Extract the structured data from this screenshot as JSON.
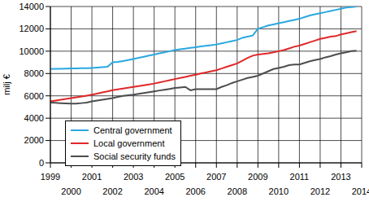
{
  "chart_data": {
    "type": "line",
    "y_label": "milj €",
    "legend": "lower left",
    "grid": true,
    "x": [
      1999,
      1999.25,
      1999.5,
      1999.75,
      2000,
      2000.25,
      2000.5,
      2000.75,
      2001,
      2001.25,
      2001.5,
      2001.75,
      2002,
      2002.25,
      2002.5,
      2002.75,
      2003,
      2003.25,
      2003.5,
      2003.75,
      2004,
      2004.25,
      2004.5,
      2004.75,
      2005,
      2005.25,
      2005.5,
      2005.75,
      2006,
      2006.25,
      2006.5,
      2006.75,
      2007,
      2007.25,
      2007.5,
      2007.75,
      2008,
      2008.25,
      2008.5,
      2008.75,
      2009,
      2009.25,
      2009.5,
      2009.75,
      2010,
      2010.25,
      2010.5,
      2010.75,
      2011,
      2011.25,
      2011.5,
      2011.75,
      2012,
      2012.25,
      2012.5,
      2012.75,
      2013,
      2013.25,
      2013.5,
      2013.75
    ],
    "xlim": [
      1999,
      2014
    ],
    "xticks": [
      1999,
      2000,
      2001,
      2002,
      2003,
      2004,
      2005,
      2006,
      2007,
      2008,
      2009,
      2010,
      2011,
      2012,
      2013,
      2014
    ],
    "ylim": [
      0,
      14000
    ],
    "yticks": [
      0,
      2000,
      4000,
      6000,
      8000,
      10000,
      12000,
      14000
    ],
    "series": [
      {
        "name": "Central government",
        "color": "#29a8e0",
        "values": [
          8400,
          8420,
          8430,
          8440,
          8450,
          8460,
          8470,
          8480,
          8500,
          8530,
          8560,
          8600,
          9000,
          9050,
          9120,
          9200,
          9300,
          9400,
          9500,
          9600,
          9700,
          9800,
          9900,
          10000,
          10100,
          10170,
          10230,
          10300,
          10350,
          10420,
          10480,
          10540,
          10600,
          10700,
          10800,
          10900,
          11000,
          11200,
          11300,
          11400,
          12000,
          12150,
          12300,
          12400,
          12500,
          12600,
          12700,
          12800,
          12900,
          13050,
          13200,
          13300,
          13400,
          13500,
          13600,
          13700,
          13800,
          13900,
          13950,
          14000
        ]
      },
      {
        "name": "Local government",
        "color": "#e0282a",
        "values": [
          5500,
          5580,
          5650,
          5720,
          5800,
          5870,
          5950,
          6020,
          6100,
          6200,
          6300,
          6400,
          6500,
          6580,
          6650,
          6720,
          6800,
          6880,
          6950,
          7020,
          7100,
          7200,
          7300,
          7400,
          7500,
          7600,
          7700,
          7800,
          7900,
          8000,
          8100,
          8200,
          8300,
          8450,
          8600,
          8750,
          8900,
          9150,
          9400,
          9600,
          9700,
          9750,
          9800,
          9900,
          10000,
          10100,
          10250,
          10400,
          10500,
          10650,
          10800,
          10950,
          11100,
          11200,
          11300,
          11350,
          11500,
          11600,
          11700,
          11800
        ]
      },
      {
        "name": "Social security funds",
        "color": "#4d4d4d",
        "values": [
          5400,
          5380,
          5350,
          5320,
          5300,
          5300,
          5350,
          5400,
          5500,
          5580,
          5650,
          5720,
          5800,
          5900,
          6000,
          6050,
          6100,
          6180,
          6250,
          6320,
          6400,
          6480,
          6550,
          6620,
          6700,
          6750,
          6800,
          6500,
          6600,
          6600,
          6600,
          6600,
          6600,
          6800,
          6950,
          7150,
          7300,
          7450,
          7600,
          7700,
          7800,
          8000,
          8200,
          8400,
          8500,
          8600,
          8750,
          8800,
          8800,
          8950,
          9100,
          9200,
          9300,
          9450,
          9550,
          9700,
          9800,
          9900,
          10000,
          10050
        ]
      }
    ]
  }
}
